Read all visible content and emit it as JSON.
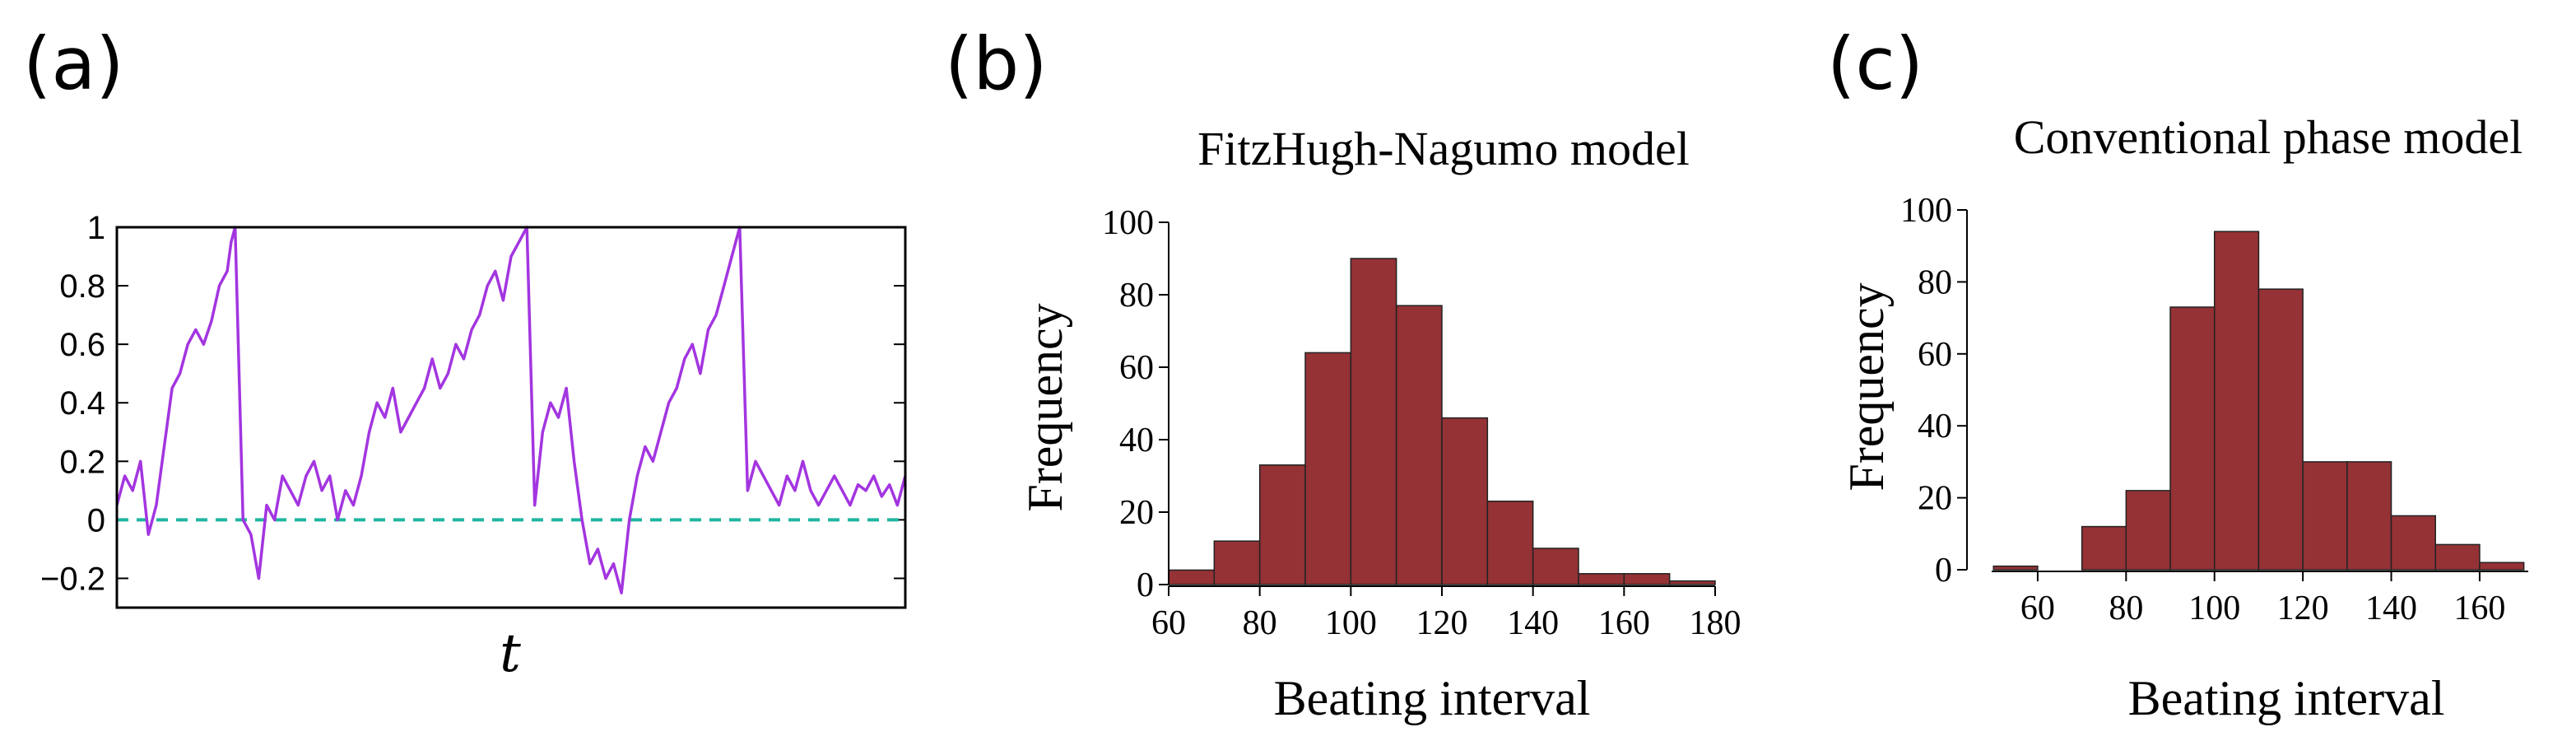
{
  "chart_data": [
    {
      "panel": "(a)",
      "type": "line",
      "title": "",
      "xlabel": "t",
      "ylabel": "",
      "ylim": [
        -0.3,
        1
      ],
      "yticks": [
        1,
        0.8,
        0.6,
        0.4,
        0.2,
        0,
        -0.2
      ],
      "ytick_labels": [
        "1",
        "0.8",
        "0.6",
        "0.4",
        "0.2",
        "0",
        "−0.2"
      ],
      "xlim": [
        0,
        1
      ],
      "series": [
        {
          "name": "phase trajectory",
          "x": [
            0,
            0.01,
            0.02,
            0.03,
            0.04,
            0.05,
            0.06,
            0.07,
            0.08,
            0.09,
            0.1,
            0.11,
            0.12,
            0.13,
            0.14,
            0.145,
            0.15,
            0.16,
            0.17,
            0.18,
            0.19,
            0.2,
            0.21,
            0.22,
            0.23,
            0.24,
            0.25,
            0.26,
            0.27,
            0.28,
            0.29,
            0.3,
            0.31,
            0.32,
            0.33,
            0.34,
            0.35,
            0.36,
            0.37,
            0.38,
            0.39,
            0.4,
            0.41,
            0.42,
            0.43,
            0.44,
            0.45,
            0.46,
            0.47,
            0.48,
            0.49,
            0.5,
            0.51,
            0.52,
            0.53,
            0.54,
            0.55,
            0.56,
            0.57,
            0.58,
            0.59,
            0.6,
            0.61,
            0.62,
            0.63,
            0.64,
            0.65,
            0.66,
            0.67,
            0.68,
            0.69,
            0.7,
            0.71,
            0.72,
            0.73,
            0.74,
            0.75,
            0.76,
            0.77,
            0.78,
            0.79,
            0.8,
            0.81,
            0.82,
            0.83,
            0.84,
            0.85,
            0.86,
            0.87,
            0.88,
            0.89,
            0.9,
            0.91,
            0.92,
            0.93,
            0.94,
            0.95,
            0.96,
            0.97,
            0.98,
            0.99,
            1.0
          ],
          "y": [
            0.05,
            0.15,
            0.1,
            0.2,
            -0.05,
            0.05,
            0.25,
            0.45,
            0.5,
            0.6,
            0.65,
            0.6,
            0.68,
            0.8,
            0.85,
            0.95,
            1.0,
            0.0,
            -0.05,
            -0.2,
            0.05,
            0.0,
            0.15,
            0.1,
            0.05,
            0.15,
            0.2,
            0.1,
            0.15,
            0.0,
            0.1,
            0.05,
            0.15,
            0.3,
            0.4,
            0.35,
            0.45,
            0.3,
            0.35,
            0.4,
            0.45,
            0.55,
            0.45,
            0.5,
            0.6,
            0.55,
            0.65,
            0.7,
            0.8,
            0.85,
            0.75,
            0.9,
            0.95,
            1.0,
            0.05,
            0.3,
            0.4,
            0.35,
            0.45,
            0.2,
            0.0,
            -0.15,
            -0.1,
            -0.2,
            -0.15,
            -0.25,
            0.0,
            0.15,
            0.25,
            0.2,
            0.3,
            0.4,
            0.45,
            0.55,
            0.6,
            0.5,
            0.65,
            0.7,
            0.8,
            0.9,
            1.0,
            0.1,
            0.2,
            0.15,
            0.1,
            0.05,
            0.15,
            0.1,
            0.2,
            0.1,
            0.05,
            0.1,
            0.15,
            0.1,
            0.05,
            0.12,
            0.1,
            0.15,
            0.08,
            0.12,
            0.05,
            0.15
          ]
        },
        {
          "name": "zero reference",
          "style": "dashed",
          "color": "#1fb5a0",
          "y_const": 0
        }
      ],
      "colors": {
        "line": "#a335e0",
        "reference": "#1fb5a0"
      }
    },
    {
      "panel": "(b)",
      "type": "bar",
      "title": "FitzHugh-Nagumo model",
      "xlabel": "Beating interval",
      "ylabel": "Frequency",
      "xlim": [
        60,
        180
      ],
      "ylim": [
        0,
        100
      ],
      "xticks": [
        60,
        80,
        100,
        120,
        140,
        160,
        180
      ],
      "yticks": [
        0,
        20,
        40,
        60,
        80,
        100
      ],
      "bin_edges": [
        60,
        70,
        80,
        90,
        100,
        110,
        120,
        130,
        140,
        150,
        160,
        170,
        180
      ],
      "values": [
        4,
        12,
        33,
        64,
        90,
        77,
        46,
        23,
        10,
        3,
        3,
        1
      ],
      "color": "#943236"
    },
    {
      "panel": "(c)",
      "type": "bar",
      "title": "Conventional phase model",
      "xlabel": "Beating interval",
      "ylabel": "Frequency",
      "xlim": [
        47,
        171
      ],
      "ylim": [
        0,
        100
      ],
      "xticks": [
        60,
        80,
        100,
        120,
        140,
        160
      ],
      "yticks": [
        0,
        20,
        40,
        60,
        80,
        100
      ],
      "bin_edges": [
        50,
        60,
        70,
        80,
        90,
        100,
        110,
        120,
        130,
        140,
        150,
        160,
        170
      ],
      "values": [
        1,
        0,
        12,
        22,
        73,
        94,
        78,
        30,
        30,
        15,
        7,
        2
      ],
      "color": "#943236"
    }
  ]
}
